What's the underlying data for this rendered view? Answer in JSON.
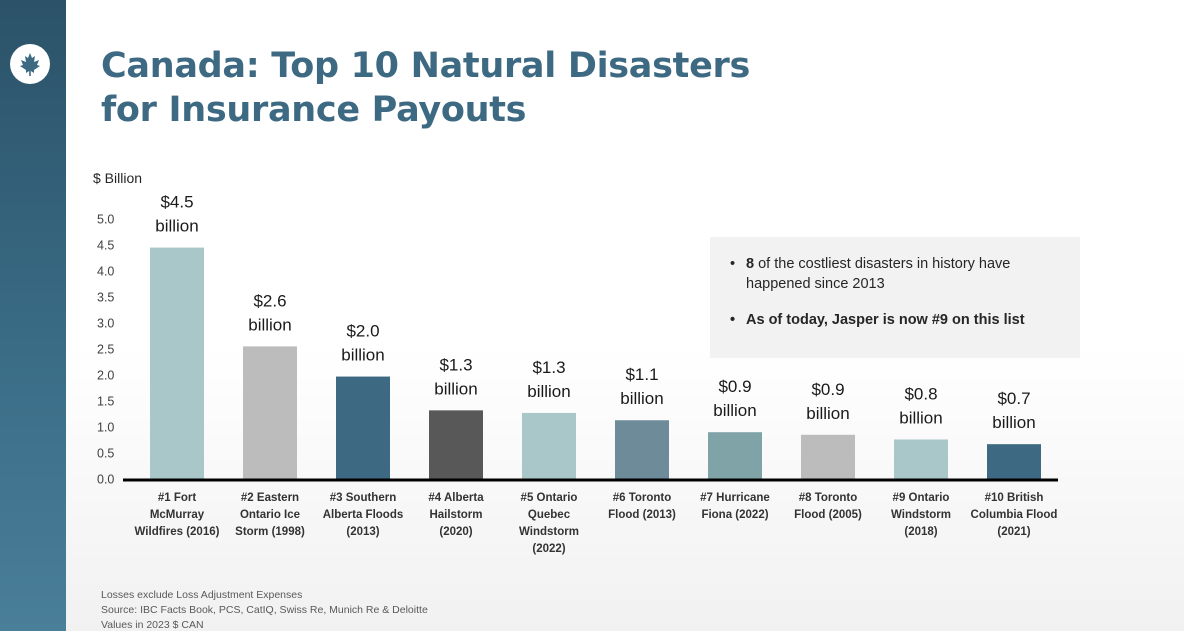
{
  "slide": {
    "title_line1": "Canada: Top 10 Natural Disasters",
    "title_line2": "for Insurance Payouts",
    "logo_icon": "maple-leaf-icon",
    "accent_color": "#3d6a82"
  },
  "callout": {
    "bullet1_bold": "8",
    "bullet1_text": " of the costliest disasters in history have happened since 2013",
    "bullet2": "As of today, Jasper is now #9 on this list"
  },
  "footnotes": [
    "Losses exclude Loss Adjustment Expenses",
    "Source: IBC  Facts Book, PCS,  CatIQ, Swiss Re, Munich Re & Deloitte",
    "Values in 2023 $ CAN"
  ],
  "chart_data": {
    "type": "bar",
    "title": "",
    "ylabel": "$ Billion",
    "ylim": [
      0,
      5
    ],
    "yticks": [
      "0.0",
      "0.5",
      "1.0",
      "1.5",
      "2.0",
      "2.5",
      "3.0",
      "3.5",
      "4.0",
      "4.5",
      "5.0"
    ],
    "grid": false,
    "categories": [
      [
        "#1 Fort",
        "McMurray",
        "Wildfires (2016)"
      ],
      [
        "#2 Eastern",
        "Ontario Ice",
        "Storm (1998)"
      ],
      [
        "#3 Southern",
        "Alberta Floods",
        "(2013)"
      ],
      [
        "#4 Alberta",
        "Hailstorm",
        "(2020)"
      ],
      [
        "#5 Ontario",
        "Quebec",
        "Windstorm",
        "(2022)"
      ],
      [
        "#6 Toronto",
        "Flood (2013)"
      ],
      [
        "#7 Hurricane",
        "Fiona (2022)"
      ],
      [
        "#8 Toronto",
        "Flood (2005)"
      ],
      [
        "#9 Ontario",
        "Windstorm",
        "(2018)"
      ],
      [
        "#10 British",
        "Columbia Flood",
        "(2021)"
      ]
    ],
    "values": [
      4.45,
      2.55,
      1.97,
      1.32,
      1.27,
      1.13,
      0.9,
      0.85,
      0.76,
      0.67
    ],
    "data_labels": [
      [
        "$4.5",
        "billion"
      ],
      [
        "$2.6",
        "billion"
      ],
      [
        "$2.0",
        "billion"
      ],
      [
        "$1.3",
        "billion"
      ],
      [
        "$1.3",
        "billion"
      ],
      [
        "$1.1",
        "billion"
      ],
      [
        "$0.9",
        "billion"
      ],
      [
        "$0.9",
        "billion"
      ],
      [
        "$0.8",
        "billion"
      ],
      [
        "$0.7",
        "billion"
      ]
    ],
    "bar_colors": [
      "#a9c6c8",
      "#bcbcbc",
      "#3d6a82",
      "#585858",
      "#a9c6c8",
      "#6e8b99",
      "#7fa3a6",
      "#bcbcbc",
      "#a9c6c8",
      "#3d6a82"
    ]
  }
}
